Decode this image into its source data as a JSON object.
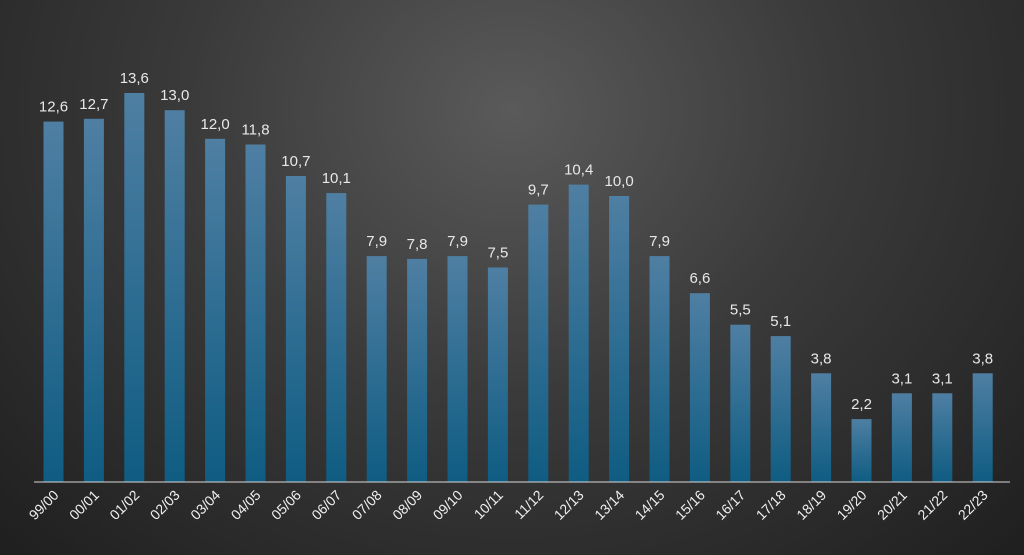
{
  "chart_data": {
    "type": "bar",
    "categories": [
      "99/00",
      "00/01",
      "01/02",
      "02/03",
      "03/04",
      "04/05",
      "05/06",
      "06/07",
      "07/08",
      "08/09",
      "09/10",
      "10/11",
      "11/12",
      "12/13",
      "13/14",
      "14/15",
      "15/16",
      "16/17",
      "17/18",
      "18/19",
      "19/20",
      "20/21",
      "21/22",
      "22/23"
    ],
    "values": [
      12.6,
      12.7,
      13.6,
      13.0,
      12.0,
      11.8,
      10.7,
      10.1,
      7.9,
      7.8,
      7.9,
      7.5,
      9.7,
      10.4,
      10.0,
      7.9,
      6.6,
      5.5,
      5.1,
      3.8,
      2.2,
      3.1,
      3.1,
      3.8
    ],
    "value_labels": [
      "12,6",
      "12,7",
      "13,6",
      "13,0",
      "12,0",
      "11,8",
      "10,7",
      "10,1",
      "7,9",
      "7,8",
      "7,9",
      "7,5",
      "9,7",
      "10,4",
      "10,0",
      "7,9",
      "6,6",
      "5,5",
      "5,1",
      "3,8",
      "2,2",
      "3,1",
      "3,1",
      "3,8"
    ],
    "title": "",
    "xlabel": "",
    "ylabel": "",
    "ylim": [
      0,
      14
    ],
    "grid": false,
    "legend": "none",
    "colors": {
      "bar_top": "#4f7fa3",
      "bar_bottom": "#0f5c82",
      "axis": "#d8d8d8",
      "label": "#e8e8e8"
    }
  }
}
